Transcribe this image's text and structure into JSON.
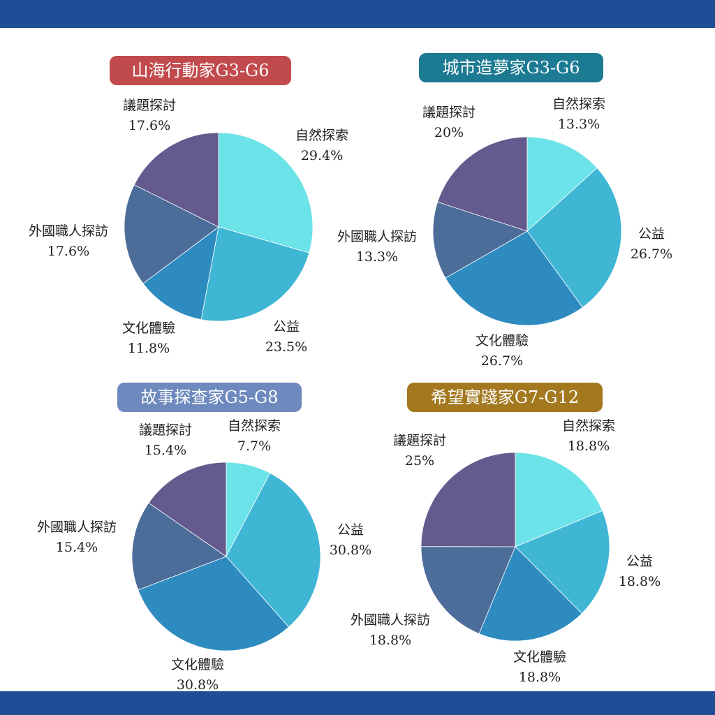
{
  "colors": {
    "band": "#1f4e96",
    "slices": [
      "#6be3e8",
      "#40b6d5",
      "#2d8bbf",
      "#4c6d99",
      "#655a8d"
    ]
  },
  "chart_data": [
    {
      "type": "pie",
      "title": "山海行動家G3-G6",
      "title_color": "#c14a4d",
      "slices": [
        {
          "name": "自然探索",
          "value": 29.4,
          "label": "29.4%"
        },
        {
          "name": "公益",
          "value": 23.5,
          "label": "23.5%"
        },
        {
          "name": "文化體驗",
          "value": 11.8,
          "label": "11.8%"
        },
        {
          "name": "外國職人探訪",
          "value": 17.6,
          "label": "17.6%"
        },
        {
          "name": "議題探討",
          "value": 17.6,
          "label": "17.6%"
        }
      ]
    },
    {
      "type": "pie",
      "title": "城市造夢家G3-G6",
      "title_color": "#1c7a93",
      "slices": [
        {
          "name": "自然探索",
          "value": 13.3,
          "label": "13.3%"
        },
        {
          "name": "公益",
          "value": 26.7,
          "label": "26.7%"
        },
        {
          "name": "文化體驗",
          "value": 26.7,
          "label": "26.7%"
        },
        {
          "name": "外國職人探訪",
          "value": 13.3,
          "label": "13.3%"
        },
        {
          "name": "議題探討",
          "value": 20,
          "label": "20%"
        }
      ]
    },
    {
      "type": "pie",
      "title": "故事探查家G5-G8",
      "title_color": "#6d89bd",
      "slices": [
        {
          "name": "自然探索",
          "value": 7.7,
          "label": "7.7%"
        },
        {
          "name": "公益",
          "value": 30.8,
          "label": "30.8%"
        },
        {
          "name": "文化體驗",
          "value": 30.8,
          "label": "30.8%"
        },
        {
          "name": "外國職人探訪",
          "value": 15.4,
          "label": "15.4%"
        },
        {
          "name": "議題探討",
          "value": 15.4,
          "label": "15.4%"
        }
      ]
    },
    {
      "type": "pie",
      "title": "希望實踐家G7-G12",
      "title_color": "#a3781f",
      "slices": [
        {
          "name": "自然探索",
          "value": 18.8,
          "label": "18.8%"
        },
        {
          "name": "公益",
          "value": 18.8,
          "label": "18.8%"
        },
        {
          "name": "文化體驗",
          "value": 18.8,
          "label": "18.8%"
        },
        {
          "name": "外國職人探訪",
          "value": 18.8,
          "label": "18.8%"
        },
        {
          "name": "議題探討",
          "value": 25,
          "label": "25%"
        }
      ]
    }
  ]
}
